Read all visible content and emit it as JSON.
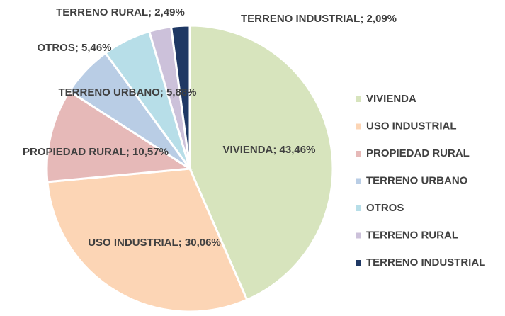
{
  "chart_data": {
    "type": "pie",
    "categories": [
      "VIVIENDA",
      "USO INDUSTRIAL",
      "PROPIEDAD RURAL",
      "TERRENO URBANO",
      "OTROS",
      "TERRENO RURAL",
      "TERRENO INDUSTRIAL"
    ],
    "values": [
      43.46,
      30.06,
      10.57,
      5.88,
      5.46,
      2.49,
      2.09
    ],
    "value_labels": [
      "VIVIENDA; 43,46%",
      "USO INDUSTRIAL; 30,06%",
      "PROPIEDAD RURAL; 10,57%",
      "TERRENO URBANO; 5,88%",
      "OTROS; 5,46%",
      "TERRENO RURAL; 2,49%",
      "TERRENO INDUSTRIAL; 2,09%"
    ],
    "colors": [
      "#d7e4bd",
      "#fcd5b5",
      "#e6b9b8",
      "#b9cde5",
      "#b7dee8",
      "#ccc1da",
      "#1f3864"
    ],
    "legend": "right"
  }
}
